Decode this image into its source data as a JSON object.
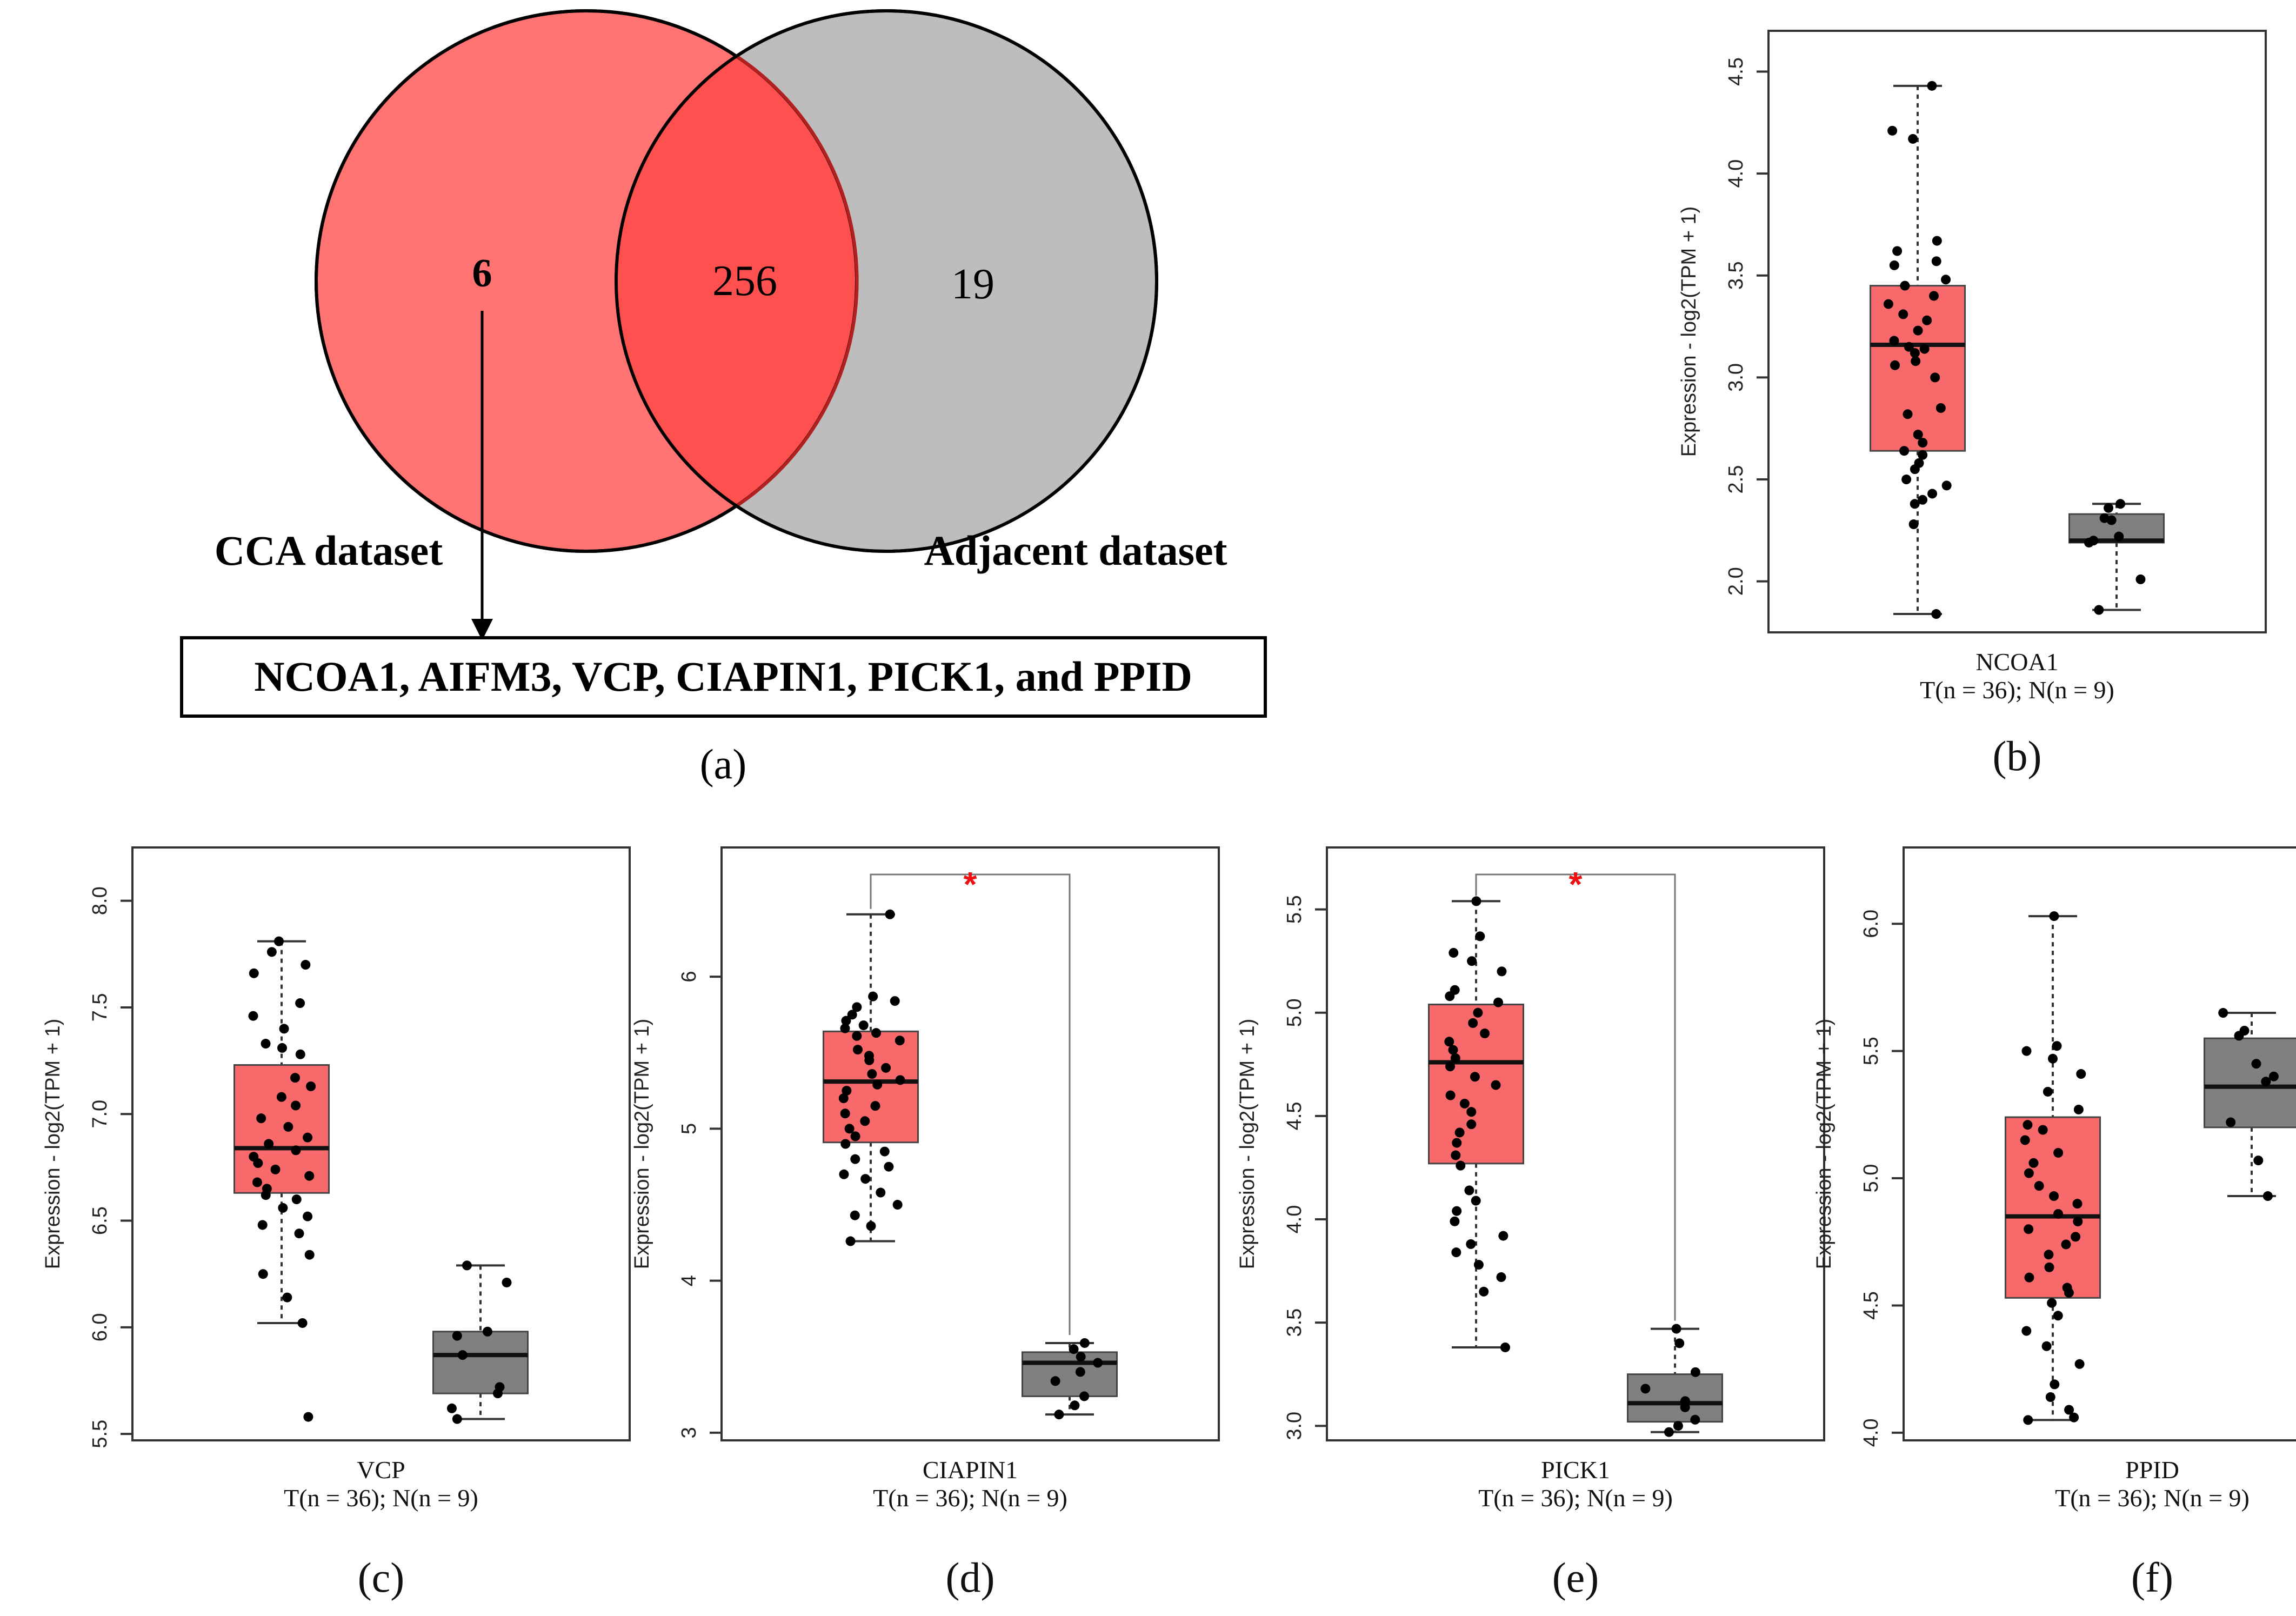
{
  "venn": {
    "left_label": "CCA dataset",
    "right_label": "Adjacent dataset",
    "left_only": "6",
    "overlap": "256",
    "right_only": "19",
    "gene_list": "NCOA1, AIFM3, VCP, CIAPIN1, PICK1, and PPID",
    "panel_label": "(a)",
    "colors": {
      "left": "#ff6b6b",
      "right": "#bdbdbd",
      "overlap": "#ff5050"
    }
  },
  "chart_data": [
    {
      "type": "box",
      "panel_label": "(b)",
      "gene": "NCOA1",
      "sample_label": "T(n = 36); N(n = 9)",
      "ylabel": "Expression - log2(TPM + 1)",
      "ylim": [
        1.75,
        4.7
      ],
      "yticks": [
        "2.0",
        "2.5",
        "3.0",
        "3.5",
        "4.0",
        "4.5"
      ],
      "significance": "",
      "tumor": {
        "name": "T",
        "color": "#f8696b",
        "min": 1.84,
        "q1": 2.64,
        "median": 3.16,
        "q3": 3.45,
        "max": 4.43,
        "points": [
          4.43,
          4.21,
          4.17,
          3.67,
          3.62,
          3.57,
          3.55,
          3.48,
          3.45,
          3.4,
          3.36,
          3.31,
          3.28,
          3.23,
          3.18,
          3.15,
          3.14,
          3.12,
          3.08,
          3.06,
          3.0,
          2.85,
          2.82,
          2.72,
          2.68,
          2.64,
          2.62,
          2.58,
          2.55,
          2.5,
          2.47,
          2.43,
          2.4,
          2.38,
          2.28,
          1.84
        ]
      },
      "normal": {
        "name": "N",
        "color": "#808080",
        "min": 1.86,
        "q1": 2.19,
        "median": 2.2,
        "q3": 2.33,
        "max": 2.38,
        "points": [
          2.38,
          2.36,
          2.31,
          2.22,
          2.2,
          2.19,
          2.01,
          1.86,
          2.3
        ]
      }
    },
    {
      "type": "box",
      "panel_label": "(c)",
      "gene": "VCP",
      "sample_label": "T(n = 36); N(n = 9)",
      "ylabel": "Expression - log2(TPM + 1)",
      "ylim": [
        5.47,
        8.25
      ],
      "yticks": [
        "5.5",
        "6.0",
        "6.5",
        "7.0",
        "7.5",
        "8.0"
      ],
      "significance": "",
      "tumor": {
        "name": "T",
        "color": "#f8696b",
        "min": 6.02,
        "q1": 6.63,
        "median": 6.84,
        "q3": 7.23,
        "max": 7.81,
        "points": [
          7.81,
          7.76,
          7.7,
          7.66,
          7.52,
          7.46,
          7.4,
          7.33,
          7.31,
          7.28,
          7.17,
          7.13,
          7.08,
          7.04,
          6.98,
          6.94,
          6.89,
          6.86,
          6.83,
          6.8,
          6.77,
          6.74,
          6.71,
          6.68,
          6.65,
          6.62,
          6.6,
          6.56,
          6.52,
          6.48,
          6.44,
          6.34,
          6.25,
          6.14,
          6.02,
          5.58
        ]
      },
      "normal": {
        "name": "N",
        "color": "#808080",
        "min": 5.57,
        "q1": 5.69,
        "median": 5.87,
        "q3": 5.98,
        "max": 6.29,
        "points": [
          6.29,
          6.21,
          5.98,
          5.96,
          5.87,
          5.72,
          5.69,
          5.62,
          5.57
        ]
      }
    },
    {
      "type": "box",
      "panel_label": "(d)",
      "gene": "CIAPIN1",
      "sample_label": "T(n = 36); N(n = 9)",
      "ylabel": "Expression - log2(TPM + 1)",
      "ylim": [
        2.95,
        6.85
      ],
      "yticks": [
        "3",
        "4",
        "5",
        "6"
      ],
      "significance": "*",
      "tumor": {
        "name": "T",
        "color": "#f8696b",
        "min": 4.26,
        "q1": 4.91,
        "median": 5.31,
        "q3": 5.64,
        "max": 6.41,
        "points": [
          6.41,
          5.87,
          5.84,
          5.8,
          5.75,
          5.71,
          5.68,
          5.66,
          5.63,
          5.61,
          5.58,
          5.52,
          5.48,
          5.45,
          5.4,
          5.36,
          5.32,
          5.29,
          5.25,
          5.2,
          5.15,
          5.1,
          5.05,
          5.0,
          4.95,
          4.9,
          4.85,
          4.8,
          4.75,
          4.7,
          4.67,
          4.58,
          4.5,
          4.43,
          4.36,
          4.26
        ]
      },
      "normal": {
        "name": "N",
        "color": "#808080",
        "min": 3.12,
        "q1": 3.24,
        "median": 3.46,
        "q3": 3.53,
        "max": 3.59,
        "points": [
          3.59,
          3.55,
          3.5,
          3.46,
          3.4,
          3.34,
          3.24,
          3.18,
          3.12
        ]
      }
    },
    {
      "type": "box",
      "panel_label": "(e)",
      "gene": "PICK1",
      "sample_label": "T(n = 36); N(n = 9)",
      "ylabel": "Expression - log2(TPM + 1)",
      "ylim": [
        2.93,
        5.8
      ],
      "yticks": [
        "3.0",
        "3.5",
        "4.0",
        "4.5",
        "5.0",
        "5.5"
      ],
      "significance": "*",
      "tumor": {
        "name": "T",
        "color": "#f8696b",
        "min": 3.38,
        "q1": 4.27,
        "median": 4.76,
        "q3": 5.04,
        "max": 5.54,
        "points": [
          5.54,
          5.37,
          5.29,
          5.25,
          5.2,
          5.11,
          5.08,
          5.05,
          5.0,
          4.95,
          4.9,
          4.86,
          4.82,
          4.78,
          4.74,
          4.69,
          4.65,
          4.6,
          4.56,
          4.52,
          4.46,
          4.42,
          4.37,
          4.31,
          4.26,
          4.14,
          4.09,
          4.04,
          3.99,
          3.92,
          3.88,
          3.84,
          3.78,
          3.72,
          3.65,
          3.38
        ]
      },
      "normal": {
        "name": "N",
        "color": "#808080",
        "min": 2.97,
        "q1": 3.02,
        "median": 3.11,
        "q3": 3.25,
        "max": 3.47,
        "points": [
          3.47,
          3.4,
          3.26,
          3.18,
          3.12,
          3.09,
          3.03,
          3.0,
          2.97
        ]
      }
    },
    {
      "type": "box",
      "panel_label": "(f)",
      "gene": "PPID",
      "sample_label": "T(n = 36); N(n = 9)",
      "ylabel": "Expression - log2(TPM + 1)",
      "ylim": [
        3.97,
        6.3
      ],
      "yticks": [
        "4.0",
        "4.5",
        "5.0",
        "5.5",
        "6.0"
      ],
      "significance": "",
      "tumor": {
        "name": "T",
        "color": "#f8696b",
        "min": 4.05,
        "q1": 4.53,
        "median": 4.85,
        "q3": 5.24,
        "max": 6.03,
        "points": [
          6.03,
          5.52,
          5.5,
          5.47,
          5.41,
          5.34,
          5.27,
          5.21,
          5.19,
          5.15,
          5.1,
          5.06,
          5.02,
          4.97,
          4.93,
          4.9,
          4.86,
          4.83,
          4.8,
          4.77,
          4.74,
          4.7,
          4.65,
          4.61,
          4.57,
          4.55,
          4.51,
          4.46,
          4.4,
          4.34,
          4.27,
          4.19,
          4.14,
          4.09,
          4.06,
          4.05
        ]
      },
      "normal": {
        "name": "N",
        "color": "#808080",
        "min": 4.93,
        "q1": 5.2,
        "median": 5.36,
        "q3": 5.55,
        "max": 5.65,
        "points": [
          5.65,
          5.58,
          5.56,
          5.45,
          5.4,
          5.38,
          5.22,
          5.07,
          4.93
        ]
      }
    }
  ]
}
